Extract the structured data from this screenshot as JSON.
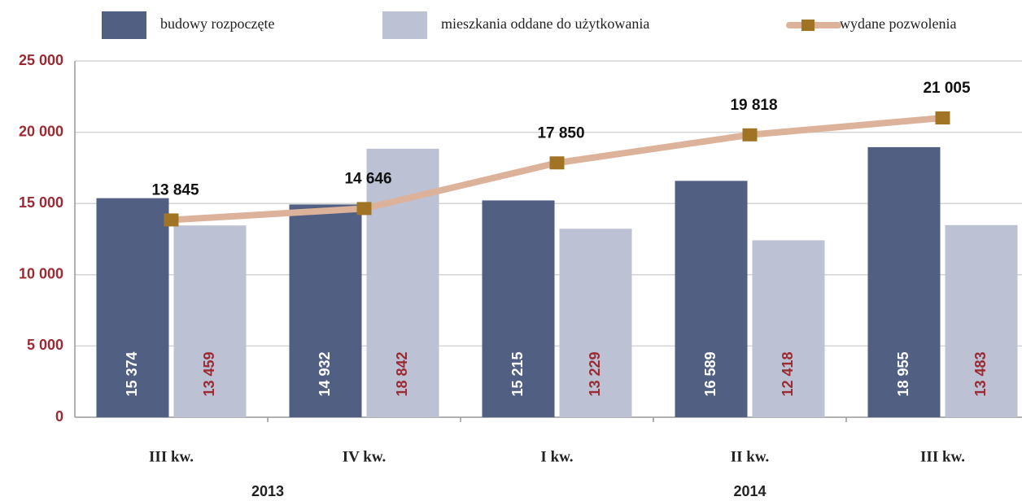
{
  "chart_data": {
    "type": "bar",
    "categories": [
      "III kw.",
      "IV kw.",
      "I kw.",
      "II kw.",
      "III kw."
    ],
    "groups": [
      {
        "label": "2013",
        "count": 2
      },
      {
        "label": "2014",
        "count": 3
      }
    ],
    "series": [
      {
        "name": "budowy rozpoczęte",
        "type": "bar",
        "color": "#515f82",
        "label_color": "#ffffff",
        "values": [
          15374,
          14932,
          15215,
          16589,
          18955
        ],
        "value_labels": [
          "15 374",
          "14 932",
          "15 215",
          "16 589",
          "18 955"
        ]
      },
      {
        "name": "mieszkania oddane do użytkowania",
        "type": "bar",
        "color": "#bcc1d4",
        "label_color": "#9b2a32",
        "values": [
          13459,
          18842,
          13229,
          12418,
          13483
        ],
        "value_labels": [
          "13 459",
          "18 842",
          "13 229",
          "12 418",
          "13 483"
        ]
      },
      {
        "name": "wydane pozwolenia",
        "type": "line",
        "color": "#dcb39a",
        "marker_color": "#a07424",
        "values": [
          13845,
          14646,
          17850,
          19818,
          21005
        ],
        "value_labels": [
          "13 845",
          "14 646",
          "17 850",
          "19 818",
          "21 005"
        ]
      }
    ],
    "ylim": [
      0,
      25000
    ],
    "yticks": [
      0,
      {
        "value": 5000,
        "label": "5 000"
      },
      {
        "value": 10000,
        "label": "10 000"
      },
      {
        "value": 15000,
        "label": "15 000"
      },
      {
        "value": 20000,
        "label": "20 000"
      },
      {
        "value": 25000,
        "label": "25 000"
      }
    ],
    "grid": true
  }
}
